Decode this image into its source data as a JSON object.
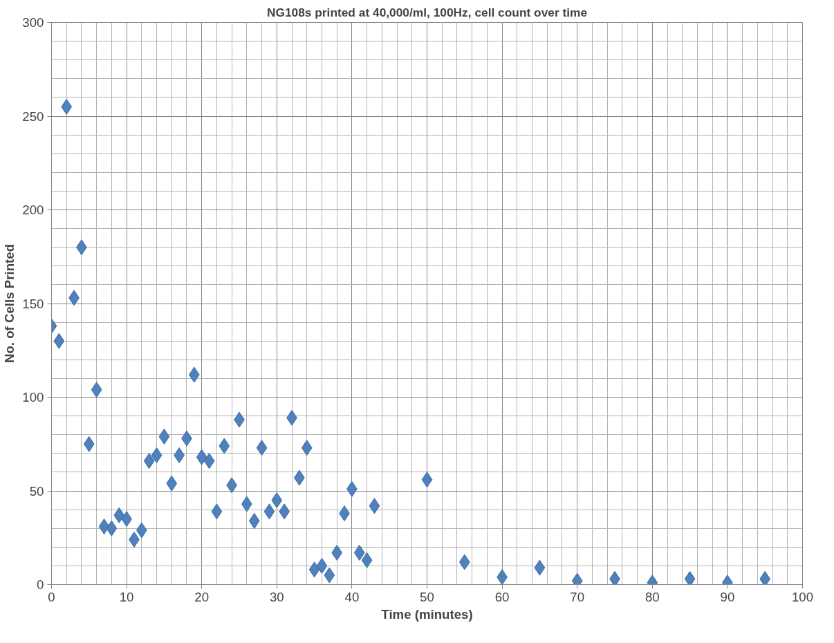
{
  "chart_data": {
    "type": "scatter",
    "title": "NG108s printed at 40,000/ml, 100Hz, cell count over time",
    "xlabel": "Time (minutes)",
    "ylabel": "No. of Cells Printed",
    "x": [
      0,
      1,
      2,
      3,
      4,
      5,
      6,
      7,
      8,
      9,
      10,
      11,
      12,
      13,
      14,
      15,
      16,
      17,
      18,
      19,
      20,
      21,
      22,
      23,
      24,
      25,
      26,
      27,
      28,
      29,
      30,
      31,
      32,
      33,
      34,
      35,
      36,
      37,
      38,
      39,
      40,
      41,
      42,
      43,
      50,
      55,
      60,
      65,
      70,
      75,
      80,
      85,
      90,
      95
    ],
    "series": [
      {
        "color": "#4f81bd",
        "values": [
          138,
          130,
          255,
          153,
          180,
          75,
          104,
          31,
          30,
          37,
          35,
          24,
          29,
          66,
          69,
          79,
          54,
          69,
          78,
          112,
          68,
          66,
          39,
          74,
          53,
          88,
          43,
          34,
          73,
          39,
          45,
          39,
          89,
          57,
          73,
          8,
          10,
          5,
          17,
          38,
          51,
          17,
          13,
          42,
          56,
          12,
          4,
          9,
          2,
          3,
          1,
          3,
          1,
          3
        ]
      }
    ],
    "xlim": [
      0,
      100
    ],
    "xticks": [
      0,
      10,
      20,
      30,
      40,
      50,
      60,
      70,
      80,
      90,
      100
    ],
    "ylim": [
      0,
      300
    ],
    "yticks": [
      0,
      50,
      100,
      150,
      200,
      250,
      300
    ],
    "grid": true,
    "marker": "diamond"
  }
}
